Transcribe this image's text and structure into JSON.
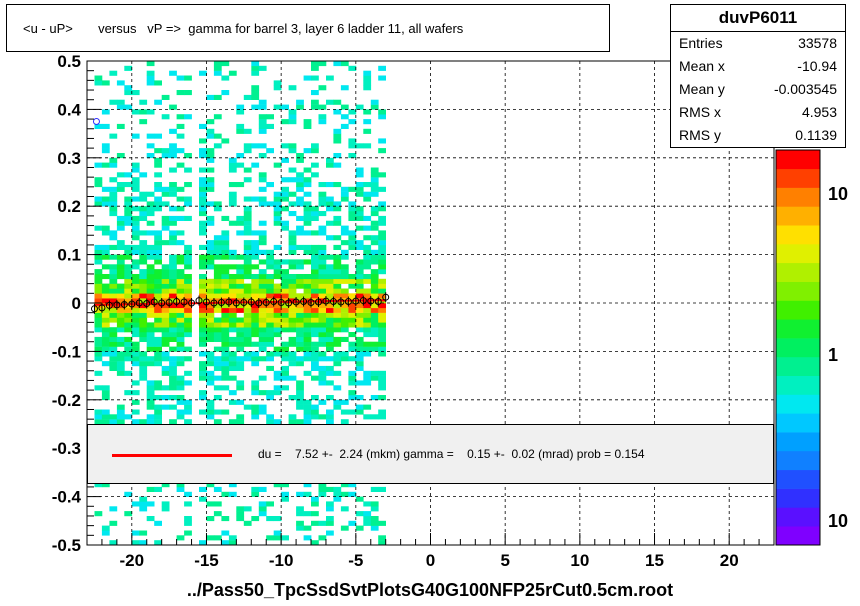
{
  "title": "<u - uP>       versus   vP =>  gamma for barrel 3, layer 6 ladder 11, all wafers",
  "stats": {
    "name": "duvP6011",
    "rows": [
      {
        "label": "Entries",
        "value": "33578"
      },
      {
        "label": "Mean x",
        "value": "-10.94"
      },
      {
        "label": "Mean y",
        "value": "-0.003545"
      },
      {
        "label": "RMS x",
        "value": "4.953"
      },
      {
        "label": "RMS y",
        "value": "0.1139"
      }
    ]
  },
  "fit_legend": "du =    7.52 +-  2.24 (mkm) gamma =    0.15 +-  0.02 (mrad) prob = 0.154",
  "x_axis_title": "../Pass50_TpcSsdSvtPlotsG40G100NFP25rCut0.5cm.root",
  "colors": {
    "fit_line": "#ff0000",
    "grid": "#000000",
    "legend_bg": "#f0f0f0"
  },
  "chart_data": {
    "type": "heatmap",
    "title": "<u - uP>       versus   vP =>  gamma for barrel 3, layer 6 ladder 11, all wafers",
    "xlabel": "../Pass50_TpcSsdSvtPlotsG40G100NFP25rCut0.5cm.root",
    "ylabel": "",
    "xlim": [
      -23,
      23
    ],
    "ylim": [
      -0.5,
      0.5
    ],
    "x_ticks": [
      -20,
      -15,
      -10,
      -5,
      0,
      5,
      10,
      15,
      20
    ],
    "y_ticks": [
      -0.5,
      -0.4,
      -0.3,
      -0.2,
      -0.1,
      0,
      0.1,
      0.2,
      0.3,
      0.4,
      0.5
    ],
    "grid": true,
    "colorbar": {
      "scale": "log",
      "labels": [
        "10",
        "1",
        "10"
      ]
    },
    "occupied_x_range": [
      -22.5,
      -3
    ],
    "gap_x_range": [
      -16,
      -15.5
    ],
    "profile_points": {
      "x": [
        -22.5,
        -22,
        -21.5,
        -21,
        -20.5,
        -20,
        -19.5,
        -19,
        -18.5,
        -18,
        -17.5,
        -17,
        -16.5,
        -16,
        -15.5,
        -15,
        -14.5,
        -14,
        -13.5,
        -13,
        -12.5,
        -12,
        -11.5,
        -11,
        -10.5,
        -10,
        -9.5,
        -9,
        -8.5,
        -8,
        -7.5,
        -7,
        -6.5,
        -6,
        -5.5,
        -5,
        -4.5,
        -4,
        -3.5,
        -3
      ],
      "y": [
        -0.012,
        -0.01,
        -0.005,
        -0.004,
        -0.003,
        -0.002,
        0.0,
        -0.001,
        0.002,
        0.0,
        0.001,
        0.003,
        0.002,
        0.0,
        0.005,
        0.002,
        0.0,
        0.001,
        0.002,
        0.0,
        0.001,
        0.002,
        0.0,
        0.001,
        0.003,
        0.001,
        0.0,
        0.002,
        0.003,
        0.001,
        0.002,
        0.004,
        0.003,
        0.002,
        0.003,
        0.004,
        0.005,
        0.004,
        0.003,
        0.012
      ],
      "outlier": {
        "x": -22.5,
        "y": 0.375
      }
    },
    "fit_line": {
      "x": [
        -22.5,
        -3
      ],
      "y": [
        -0.004,
        0.006
      ]
    },
    "legend": [
      "du =    7.52 +-  2.24 (mkm) gamma =    0.15 +-  0.02 (mrad) prob = 0.154"
    ]
  }
}
